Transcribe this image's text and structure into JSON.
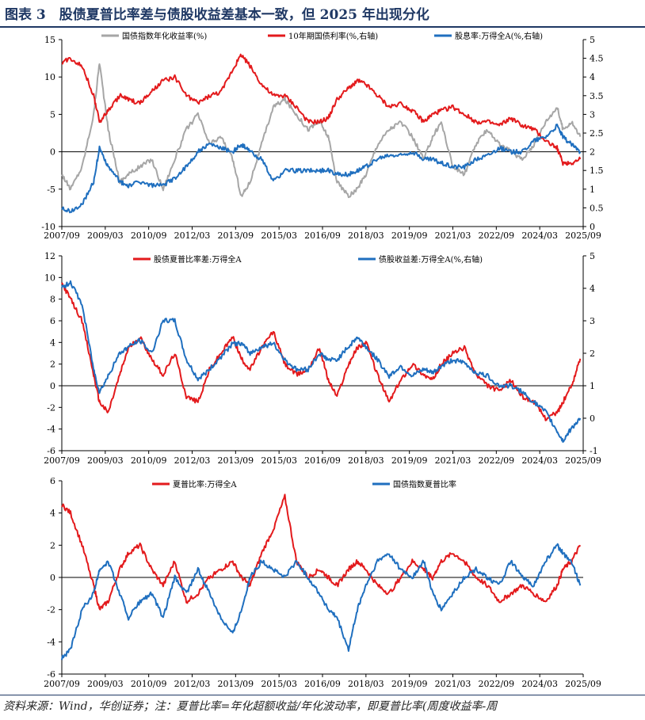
{
  "title": "图表 3　股债夏普比率差与债股收益差基本一致，但 2025 年出现分化",
  "note": "资料来源：Wind，华创证券；注：夏普比率=年化超额收益/年化波动率，即夏普比率(周度收益率-周",
  "x_tick_labels": [
    "2007/09",
    "2009/03",
    "2010/09",
    "2012/03",
    "2013/09",
    "2015/03",
    "2016/09",
    "2018/03",
    "2019/09",
    "2021/03",
    "2022/09",
    "2024/03",
    "2025/09"
  ],
  "colors": {
    "gray": "#a6a6a6",
    "red": "#e31a1c",
    "blue": "#1f6fbf",
    "title": "#1f3864"
  },
  "chart_data": [
    {
      "type": "line",
      "title": "",
      "ylim_left": [
        -10,
        15
      ],
      "ylim_right": [
        0,
        5
      ],
      "y_ticks_left": [
        "-10",
        "-5",
        "0",
        "5",
        "10",
        "15"
      ],
      "y_ticks_right": [
        "0",
        "0.5",
        "1",
        "1.5",
        "2",
        "2.5",
        "3",
        "3.5",
        "4",
        "4.5",
        "5"
      ],
      "series": [
        {
          "name": "国债指数年化收益率(%)",
          "axis": "left",
          "color": "#a6a6a6",
          "x": [
            2007.7,
            2008.0,
            2008.4,
            2008.8,
            2009.0,
            2009.3,
            2009.7,
            2010.0,
            2010.4,
            2010.8,
            2011.2,
            2011.6,
            2012.0,
            2012.4,
            2012.8,
            2013.2,
            2013.6,
            2013.9,
            2014.2,
            2014.6,
            2015.0,
            2015.4,
            2015.8,
            2016.2,
            2016.6,
            2016.9,
            2017.2,
            2017.6,
            2017.9,
            2018.2,
            2018.6,
            2019.0,
            2019.4,
            2019.8,
            2020.2,
            2020.5,
            2020.8,
            2021.2,
            2021.6,
            2022.0,
            2022.4,
            2022.8,
            2023.2,
            2023.6,
            2024.0,
            2024.4,
            2024.8,
            2025.0,
            2025.3,
            2025.6
          ],
          "values": [
            -3,
            -5,
            -2,
            5,
            12,
            3,
            -4,
            -3,
            -2,
            -1,
            -5,
            -1,
            3,
            5,
            1,
            2,
            -1,
            -6,
            -4,
            1,
            6,
            7,
            5,
            3,
            4,
            2,
            -4,
            -6,
            -5,
            -3,
            1,
            3,
            4,
            2,
            -1,
            2,
            4,
            -2,
            -3,
            1,
            3,
            1,
            0,
            -1,
            1,
            4,
            6,
            3,
            4,
            2
          ]
        },
        {
          "name": "10年期国债利率(%,右轴)",
          "axis": "right",
          "color": "#e31a1c",
          "x": [
            2007.7,
            2008.0,
            2008.4,
            2008.8,
            2009.0,
            2009.3,
            2009.7,
            2010.0,
            2010.4,
            2010.8,
            2011.2,
            2011.6,
            2012.0,
            2012.4,
            2012.8,
            2013.2,
            2013.6,
            2013.9,
            2014.2,
            2014.6,
            2015.0,
            2015.4,
            2015.8,
            2016.2,
            2016.6,
            2016.9,
            2017.2,
            2017.6,
            2017.9,
            2018.2,
            2018.6,
            2019.0,
            2019.4,
            2019.8,
            2020.2,
            2020.5,
            2020.8,
            2021.2,
            2021.6,
            2022.0,
            2022.4,
            2022.8,
            2023.2,
            2023.6,
            2024.0,
            2024.4,
            2024.8,
            2025.0,
            2025.3,
            2025.6
          ],
          "values": [
            4.4,
            4.5,
            4.3,
            3.5,
            2.8,
            3.1,
            3.5,
            3.4,
            3.3,
            3.6,
            3.9,
            4.0,
            3.5,
            3.3,
            3.5,
            3.6,
            4.2,
            4.6,
            4.3,
            3.8,
            3.5,
            3.5,
            3.2,
            2.8,
            2.8,
            2.9,
            3.4,
            3.7,
            3.9,
            3.8,
            3.5,
            3.2,
            3.3,
            3.1,
            2.8,
            3.0,
            3.1,
            3.2,
            3.0,
            2.8,
            2.8,
            2.7,
            2.9,
            2.7,
            2.6,
            2.3,
            2.1,
            1.7,
            1.7,
            1.8
          ]
        },
        {
          "name": "股息率:万得全A(%,右轴)",
          "axis": "right",
          "color": "#1f6fbf",
          "x": [
            2007.7,
            2008.0,
            2008.4,
            2008.8,
            2009.0,
            2009.3,
            2009.7,
            2010.0,
            2010.4,
            2010.8,
            2011.2,
            2011.6,
            2012.0,
            2012.4,
            2012.8,
            2013.2,
            2013.6,
            2013.9,
            2014.2,
            2014.6,
            2015.0,
            2015.4,
            2015.8,
            2016.2,
            2016.6,
            2016.9,
            2017.2,
            2017.6,
            2017.9,
            2018.2,
            2018.6,
            2019.0,
            2019.4,
            2019.8,
            2020.2,
            2020.5,
            2020.8,
            2021.2,
            2021.6,
            2022.0,
            2022.4,
            2022.8,
            2023.2,
            2023.6,
            2024.0,
            2024.4,
            2024.8,
            2025.0,
            2025.3,
            2025.6
          ],
          "values": [
            0.5,
            0.4,
            0.6,
            1.2,
            2.1,
            1.6,
            1.2,
            1.1,
            1.2,
            1.1,
            1.1,
            1.3,
            1.6,
            2.0,
            2.2,
            2.1,
            2.0,
            2.2,
            2.0,
            1.8,
            1.2,
            1.5,
            1.5,
            1.5,
            1.5,
            1.5,
            1.4,
            1.4,
            1.5,
            1.6,
            1.8,
            1.9,
            1.9,
            2.0,
            1.8,
            1.8,
            1.7,
            1.6,
            1.6,
            1.8,
            1.9,
            2.1,
            2.0,
            2.0,
            2.3,
            2.4,
            2.7,
            2.4,
            2.2,
            2.0
          ]
        }
      ]
    },
    {
      "type": "line",
      "title": "",
      "ylim_left": [
        -6,
        12
      ],
      "ylim_right": [
        -1,
        5
      ],
      "y_ticks_left": [
        "-6",
        "-4",
        "-2",
        "0",
        "2",
        "4",
        "6",
        "8",
        "10",
        "12"
      ],
      "y_ticks_right": [
        "-1",
        "0",
        "1",
        "2",
        "3",
        "4",
        "5"
      ],
      "series": [
        {
          "name": "股债夏普比率差:万得全A",
          "axis": "left",
          "color": "#e31a1c",
          "x": [
            2007.7,
            2008.0,
            2008.4,
            2008.8,
            2009.0,
            2009.3,
            2009.7,
            2010.0,
            2010.4,
            2010.8,
            2011.2,
            2011.6,
            2012.0,
            2012.4,
            2012.8,
            2013.2,
            2013.6,
            2013.9,
            2014.2,
            2014.6,
            2015.0,
            2015.4,
            2015.8,
            2016.2,
            2016.6,
            2016.9,
            2017.2,
            2017.6,
            2017.9,
            2018.2,
            2018.6,
            2019.0,
            2019.4,
            2019.8,
            2020.2,
            2020.5,
            2020.8,
            2021.2,
            2021.6,
            2022.0,
            2022.4,
            2022.8,
            2023.2,
            2023.6,
            2024.0,
            2024.4,
            2024.8,
            2025.0,
            2025.3,
            2025.6
          ],
          "values": [
            9.5,
            8.0,
            6.0,
            1.0,
            -1.5,
            -2.5,
            1.0,
            3.5,
            4.5,
            2.5,
            1.0,
            3.0,
            -1.0,
            -1.5,
            1.5,
            3.0,
            4.5,
            2.5,
            1.5,
            3.5,
            5.0,
            2.0,
            1.0,
            1.5,
            3.5,
            0.5,
            -1.0,
            2.0,
            3.5,
            4.0,
            1.0,
            -1.5,
            0.5,
            2.0,
            1.0,
            0.5,
            2.0,
            3.0,
            3.5,
            1.0,
            0.0,
            -0.5,
            0.5,
            -1.0,
            -1.5,
            -3.0,
            -2.5,
            -1.5,
            0.0,
            2.5
          ]
        },
        {
          "name": "债股收益差:万得全A(%,右轴)",
          "axis": "right",
          "color": "#1f6fbf",
          "x": [
            2007.7,
            2008.0,
            2008.4,
            2008.8,
            2009.0,
            2009.3,
            2009.7,
            2010.0,
            2010.4,
            2010.8,
            2011.2,
            2011.6,
            2012.0,
            2012.4,
            2012.8,
            2013.2,
            2013.6,
            2013.9,
            2014.2,
            2014.6,
            2015.0,
            2015.4,
            2015.8,
            2016.2,
            2016.6,
            2016.9,
            2017.2,
            2017.6,
            2017.9,
            2018.2,
            2018.6,
            2019.0,
            2019.4,
            2019.8,
            2020.2,
            2020.5,
            2020.8,
            2021.2,
            2021.6,
            2022.0,
            2022.4,
            2022.8,
            2023.2,
            2023.6,
            2024.0,
            2024.4,
            2024.8,
            2025.0,
            2025.3,
            2025.6
          ],
          "values": [
            4.0,
            4.2,
            3.5,
            1.5,
            0.8,
            1.3,
            2.0,
            2.2,
            2.4,
            2.0,
            3.0,
            3.0,
            1.8,
            1.2,
            1.5,
            1.9,
            2.3,
            2.3,
            2.0,
            2.2,
            2.3,
            1.8,
            1.5,
            1.5,
            2.0,
            1.8,
            1.8,
            2.2,
            2.5,
            2.2,
            1.8,
            1.3,
            1.6,
            1.3,
            1.5,
            1.4,
            1.6,
            1.8,
            1.7,
            1.4,
            1.3,
            1.0,
            1.0,
            0.8,
            0.5,
            0.2,
            -0.4,
            -0.7,
            -0.3,
            0.0
          ]
        }
      ]
    },
    {
      "type": "line",
      "title": "",
      "ylim_left": [
        -6,
        6
      ],
      "y_ticks_left": [
        "-6",
        "-4",
        "-2",
        "0",
        "2",
        "4",
        "6"
      ],
      "series": [
        {
          "name": "夏普比率:万得全A",
          "axis": "left",
          "color": "#e31a1c",
          "x": [
            2007.7,
            2008.0,
            2008.4,
            2008.8,
            2009.0,
            2009.3,
            2009.7,
            2010.0,
            2010.4,
            2010.8,
            2011.2,
            2011.6,
            2012.0,
            2012.4,
            2012.8,
            2013.2,
            2013.6,
            2013.9,
            2014.2,
            2014.6,
            2015.0,
            2015.4,
            2015.8,
            2016.2,
            2016.6,
            2016.9,
            2017.2,
            2017.6,
            2017.9,
            2018.2,
            2018.6,
            2019.0,
            2019.4,
            2019.8,
            2020.2,
            2020.5,
            2020.8,
            2021.2,
            2021.6,
            2022.0,
            2022.4,
            2022.8,
            2023.2,
            2023.6,
            2024.0,
            2024.4,
            2024.8,
            2025.0,
            2025.3,
            2025.6
          ],
          "values": [
            4.5,
            4.0,
            2.0,
            -0.5,
            -2.0,
            -1.5,
            0.5,
            1.5,
            2.0,
            0.5,
            -0.5,
            1.0,
            -1.5,
            -1.0,
            0.0,
            0.5,
            1.0,
            0.0,
            -0.5,
            1.5,
            3.0,
            5.0,
            1.0,
            0.0,
            0.5,
            0.0,
            -0.5,
            0.5,
            1.0,
            0.5,
            -0.5,
            -1.0,
            0.0,
            1.0,
            0.5,
            0.0,
            1.0,
            1.5,
            1.0,
            0.0,
            -0.5,
            -1.5,
            -1.0,
            -0.5,
            -1.0,
            -1.5,
            -0.5,
            0.5,
            1.0,
            2.0
          ]
        },
        {
          "name": "国债指数夏普比率",
          "axis": "left",
          "color": "#1f6fbf",
          "x": [
            2007.7,
            2008.0,
            2008.4,
            2008.8,
            2009.0,
            2009.3,
            2009.7,
            2010.0,
            2010.4,
            2010.8,
            2011.2,
            2011.6,
            2012.0,
            2012.4,
            2012.8,
            2013.2,
            2013.6,
            2013.9,
            2014.2,
            2014.6,
            2015.0,
            2015.4,
            2015.8,
            2016.2,
            2016.6,
            2016.9,
            2017.2,
            2017.6,
            2017.9,
            2018.2,
            2018.6,
            2019.0,
            2019.4,
            2019.8,
            2020.2,
            2020.5,
            2020.8,
            2021.2,
            2021.6,
            2022.0,
            2022.4,
            2022.8,
            2023.2,
            2023.6,
            2024.0,
            2024.4,
            2024.8,
            2025.0,
            2025.3,
            2025.6
          ],
          "values": [
            -5.0,
            -4.5,
            -2.0,
            -1.0,
            0.5,
            1.0,
            -1.0,
            -2.5,
            -1.5,
            -1.0,
            -2.5,
            0.0,
            -1.0,
            0.5,
            -1.0,
            -2.5,
            -3.5,
            -2.0,
            0.0,
            1.0,
            0.5,
            0.0,
            1.0,
            0.0,
            -1.0,
            -2.0,
            -2.5,
            -4.5,
            -2.0,
            -0.5,
            1.0,
            1.5,
            0.5,
            0.0,
            1.0,
            -1.0,
            -2.0,
            -1.0,
            0.0,
            0.5,
            0.0,
            -0.5,
            1.0,
            0.0,
            -0.5,
            1.0,
            2.0,
            1.5,
            1.0,
            -0.5
          ]
        }
      ]
    }
  ]
}
